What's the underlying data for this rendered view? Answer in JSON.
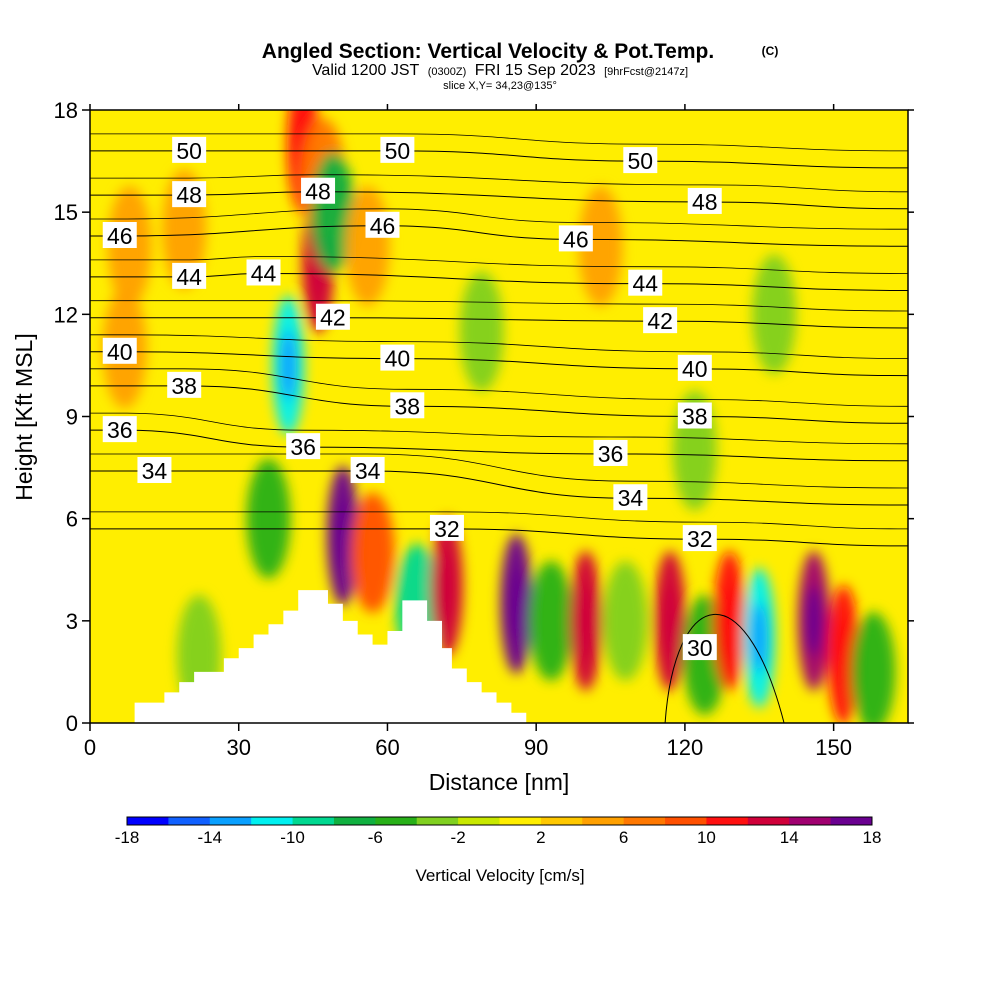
{
  "chart_data": {
    "type": "heatmap",
    "title": "Angled Section: Vertical Velocity & Pot.Temp.",
    "title_unit": "(C)",
    "subtitle": {
      "prefix": "Valid 1200 JST",
      "utc": "(0300Z)",
      "date": "FRI 15 Sep 2023",
      "forecast": "[9hrFcst@2147z]"
    },
    "slice_text": "slice X,Y= 34,23@135°",
    "xlabel": "Distance [nm]",
    "ylabel": "Height [Kft MSL]",
    "xlim": [
      0,
      165
    ],
    "ylim": [
      0,
      18
    ],
    "x_ticks": [
      0,
      30,
      60,
      90,
      120,
      150
    ],
    "y_ticks": [
      0,
      3,
      6,
      9,
      12,
      15,
      18
    ],
    "colorbar": {
      "label": "Vertical Velocity [cm/s]",
      "ticks": [
        -18,
        -14,
        -10,
        -6,
        -2,
        2,
        6,
        10,
        14,
        18
      ],
      "colors": [
        "#0000ff",
        "#1060ff",
        "#0aa0ff",
        "#00f0f0",
        "#00d890",
        "#10b040",
        "#28b018",
        "#80d020",
        "#c8e800",
        "#ffee00",
        "#ffc800",
        "#ffa000",
        "#ff7800",
        "#ff5000",
        "#ff1010",
        "#d0003a",
        "#a00070",
        "#6a0090"
      ]
    },
    "velocity_cells": [
      {
        "x": 8,
        "y": 14,
        "value": 4
      },
      {
        "x": 7,
        "y": 11,
        "value": 4
      },
      {
        "x": 19,
        "y": 14.5,
        "value": 4
      },
      {
        "x": 22,
        "y": 2,
        "value": -4
      },
      {
        "x": 36,
        "y": 6,
        "value": -6
      },
      {
        "x": 40,
        "y": 10.5,
        "value": -11
      },
      {
        "x": 43,
        "y": 17,
        "value": 10
      },
      {
        "x": 46,
        "y": 13.5,
        "value": 12
      },
      {
        "x": 47,
        "y": 16,
        "value": 6
      },
      {
        "x": 49,
        "y": 15,
        "value": -7
      },
      {
        "x": 51,
        "y": 5.5,
        "value": 18
      },
      {
        "x": 56,
        "y": 14,
        "value": 4
      },
      {
        "x": 57,
        "y": 5,
        "value": 8
      },
      {
        "x": 66,
        "y": 3.5,
        "value": -9
      },
      {
        "x": 72,
        "y": 4,
        "value": 12
      },
      {
        "x": 79,
        "y": 11.5,
        "value": -4
      },
      {
        "x": 86,
        "y": 3.5,
        "value": 16
      },
      {
        "x": 93,
        "y": 3,
        "value": -6
      },
      {
        "x": 100,
        "y": 3,
        "value": 12
      },
      {
        "x": 103,
        "y": 14,
        "value": 4
      },
      {
        "x": 108,
        "y": 3,
        "value": -4
      },
      {
        "x": 117,
        "y": 3,
        "value": 12
      },
      {
        "x": 124,
        "y": 2,
        "value": -5
      },
      {
        "x": 129,
        "y": 3,
        "value": 10
      },
      {
        "x": 135,
        "y": 2.5,
        "value": -11
      },
      {
        "x": 146,
        "y": 3,
        "value": 14
      },
      {
        "x": 152,
        "y": 2,
        "value": 10
      },
      {
        "x": 158,
        "y": 1.5,
        "value": -6
      },
      {
        "x": 138,
        "y": 12,
        "value": -3
      },
      {
        "x": 122,
        "y": 8,
        "value": -3
      }
    ],
    "terrain": [
      [
        0,
        0
      ],
      [
        9,
        0
      ],
      [
        9,
        0.6
      ],
      [
        15,
        0.6
      ],
      [
        15,
        0.9
      ],
      [
        18,
        0.9
      ],
      [
        18,
        1.2
      ],
      [
        21,
        1.2
      ],
      [
        21,
        1.5
      ],
      [
        27,
        1.5
      ],
      [
        27,
        1.9
      ],
      [
        30,
        1.9
      ],
      [
        30,
        2.2
      ],
      [
        33,
        2.2
      ],
      [
        33,
        2.6
      ],
      [
        36,
        2.6
      ],
      [
        36,
        2.9
      ],
      [
        39,
        2.9
      ],
      [
        39,
        3.3
      ],
      [
        42,
        3.3
      ],
      [
        42,
        3.9
      ],
      [
        48,
        3.9
      ],
      [
        48,
        3.5
      ],
      [
        51,
        3.5
      ],
      [
        51,
        3.0
      ],
      [
        54,
        3.0
      ],
      [
        54,
        2.6
      ],
      [
        57,
        2.6
      ],
      [
        57,
        2.3
      ],
      [
        60,
        2.3
      ],
      [
        60,
        2.7
      ],
      [
        63,
        2.7
      ],
      [
        63,
        3.6
      ],
      [
        68,
        3.6
      ],
      [
        68,
        3.0
      ],
      [
        71,
        3.0
      ],
      [
        71,
        2.2
      ],
      [
        73,
        2.2
      ],
      [
        73,
        1.6
      ],
      [
        76,
        1.6
      ],
      [
        76,
        1.2
      ],
      [
        79,
        1.2
      ],
      [
        79,
        0.9
      ],
      [
        82,
        0.9
      ],
      [
        82,
        0.6
      ],
      [
        85,
        0.6
      ],
      [
        85,
        0.3
      ],
      [
        88,
        0.3
      ],
      [
        88,
        0
      ]
    ],
    "isentropes": [
      {
        "level": 30,
        "label_xy": [
          123,
          2.2
        ]
      },
      {
        "level": 32,
        "label_xy": [
          72,
          5.7
        ]
      },
      {
        "level": 32,
        "label_xy": [
          123,
          5.4
        ]
      },
      {
        "level": 34,
        "label_xy": [
          13,
          7.4
        ]
      },
      {
        "level": 34,
        "label_xy": [
          56,
          7.4
        ]
      },
      {
        "level": 34,
        "label_xy": [
          109,
          6.6
        ]
      },
      {
        "level": 36,
        "label_xy": [
          6,
          8.6
        ]
      },
      {
        "level": 36,
        "label_xy": [
          43,
          8.1
        ]
      },
      {
        "level": 36,
        "label_xy": [
          105,
          7.9
        ]
      },
      {
        "level": 38,
        "label_xy": [
          19,
          9.9
        ]
      },
      {
        "level": 38,
        "label_xy": [
          64,
          9.3
        ]
      },
      {
        "level": 38,
        "label_xy": [
          122,
          9.0
        ]
      },
      {
        "level": 40,
        "label_xy": [
          6,
          10.9
        ]
      },
      {
        "level": 40,
        "label_xy": [
          62,
          10.7
        ]
      },
      {
        "level": 40,
        "label_xy": [
          122,
          10.4
        ]
      },
      {
        "level": 42,
        "label_xy": [
          49,
          11.9
        ]
      },
      {
        "level": 42,
        "label_xy": [
          115,
          11.8
        ]
      },
      {
        "level": 44,
        "label_xy": [
          20,
          13.1
        ]
      },
      {
        "level": 44,
        "label_xy": [
          35,
          13.2
        ]
      },
      {
        "level": 44,
        "label_xy": [
          112,
          12.9
        ]
      },
      {
        "level": 46,
        "label_xy": [
          6,
          14.3
        ]
      },
      {
        "level": 46,
        "label_xy": [
          59,
          14.6
        ]
      },
      {
        "level": 46,
        "label_xy": [
          98,
          14.2
        ]
      },
      {
        "level": 48,
        "label_xy": [
          20,
          15.5
        ]
      },
      {
        "level": 48,
        "label_xy": [
          46,
          15.6
        ]
      },
      {
        "level": 48,
        "label_xy": [
          124,
          15.3
        ]
      },
      {
        "level": 50,
        "label_xy": [
          20,
          16.8
        ]
      },
      {
        "level": 50,
        "label_xy": [
          62,
          16.8
        ]
      },
      {
        "level": 50,
        "label_xy": [
          111,
          16.5
        ]
      }
    ]
  }
}
